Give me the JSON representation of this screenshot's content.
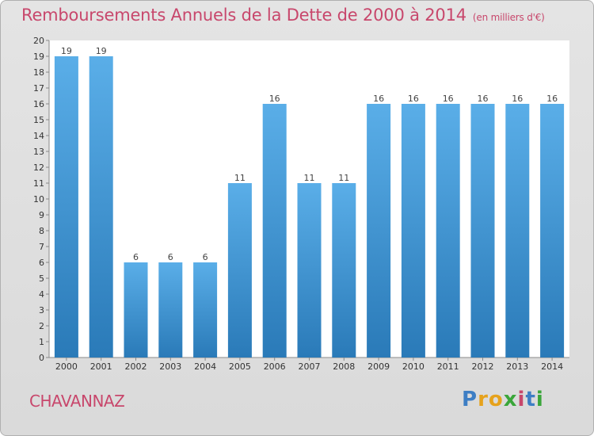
{
  "title": "Remboursements Annuels de la Dette de 2000 à 2014",
  "unit": "(en milliers d'€)",
  "commune": "CHAVANNAZ",
  "logo": "Proxiti",
  "colors": {
    "bar_light": "#5aaee8",
    "bar_dark": "#2a7ab8",
    "title": "#c8476c"
  },
  "chart_data": {
    "type": "bar",
    "title": "Remboursements Annuels de la Dette de 2000 à 2014",
    "xlabel": "",
    "ylabel": "",
    "ylim": [
      0,
      20
    ],
    "yticks": [
      0,
      1,
      2,
      3,
      4,
      5,
      6,
      7,
      8,
      9,
      10,
      11,
      12,
      13,
      14,
      15,
      16,
      17,
      18,
      19,
      20
    ],
    "categories": [
      "2000",
      "2001",
      "2002",
      "2003",
      "2004",
      "2005",
      "2006",
      "2007",
      "2008",
      "2009",
      "2010",
      "2011",
      "2012",
      "2013",
      "2014"
    ],
    "values": [
      19,
      19,
      6,
      6,
      6,
      11,
      16,
      11,
      11,
      16,
      16,
      16,
      16,
      16,
      16
    ],
    "grid": false,
    "legend": "none"
  }
}
